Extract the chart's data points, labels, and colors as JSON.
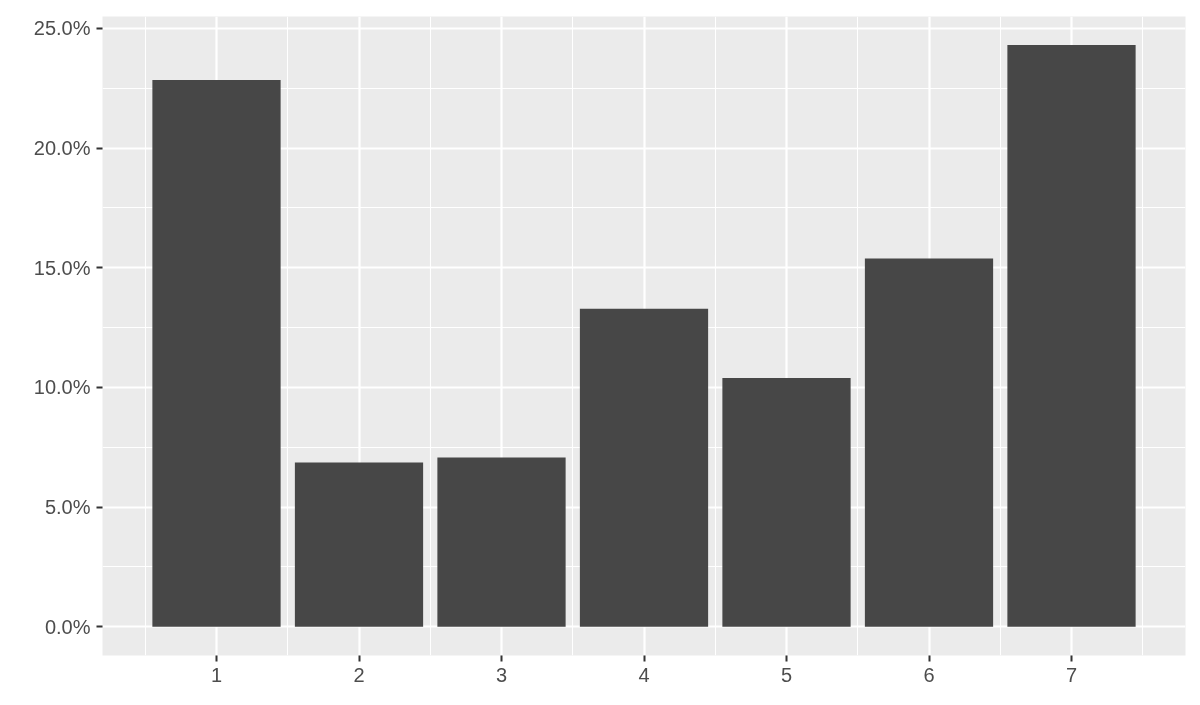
{
  "chart_data": {
    "type": "bar",
    "x": [
      1,
      2,
      3,
      4,
      5,
      6,
      7
    ],
    "values": [
      22.85,
      6.86,
      7.07,
      13.29,
      10.39,
      15.39,
      24.31
    ],
    "color": "#474747",
    "xlim": [
      0.2,
      7.8
    ],
    "xticks": [
      1,
      2,
      3,
      4,
      5,
      6,
      7
    ],
    "ylim": [
      -1.2,
      25.5
    ],
    "yticks": [
      {
        "value": 0,
        "label": "0.0%"
      },
      {
        "value": 5,
        "label": "5.0%"
      },
      {
        "value": 10,
        "label": "10.0%"
      },
      {
        "value": 15,
        "label": "15.0%"
      },
      {
        "value": 20,
        "label": "20.0%"
      },
      {
        "value": 25,
        "label": "25.0%"
      }
    ],
    "grid": true
  }
}
